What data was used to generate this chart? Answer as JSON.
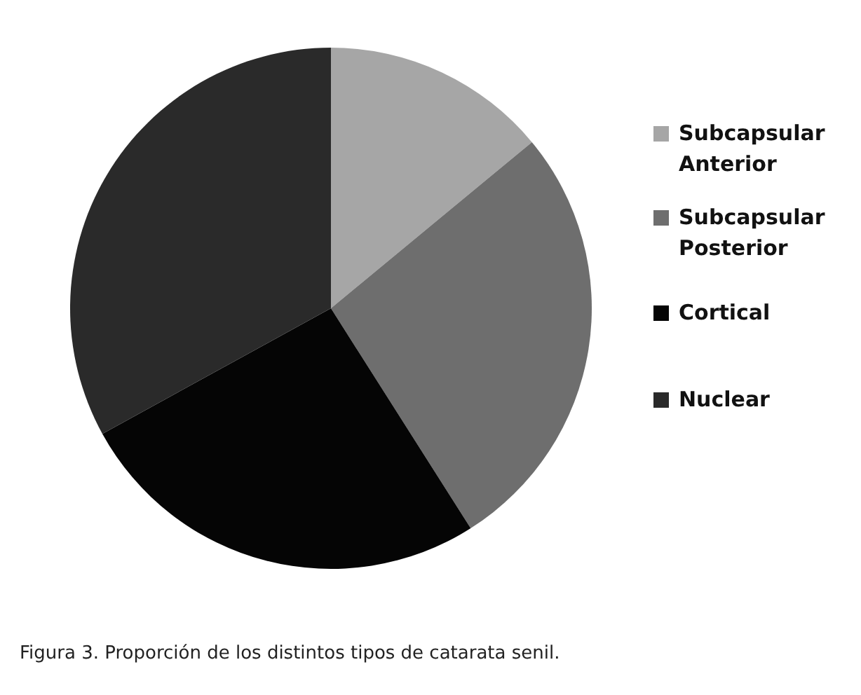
{
  "chart_data": {
    "type": "pie",
    "categories": [
      "Subcapsular Anterior",
      "Subcapsular Posterior",
      "Cortical",
      "Nuclear"
    ],
    "values": [
      14,
      27,
      26,
      33
    ],
    "colors": [
      "#a6a6a6",
      "#6e6e6e",
      "#050505",
      "#2a2a2a"
    ],
    "legend": "right",
    "annotations": [
      "Figura 3. Proporción de los distintos tipos de catarata senil."
    ]
  }
}
